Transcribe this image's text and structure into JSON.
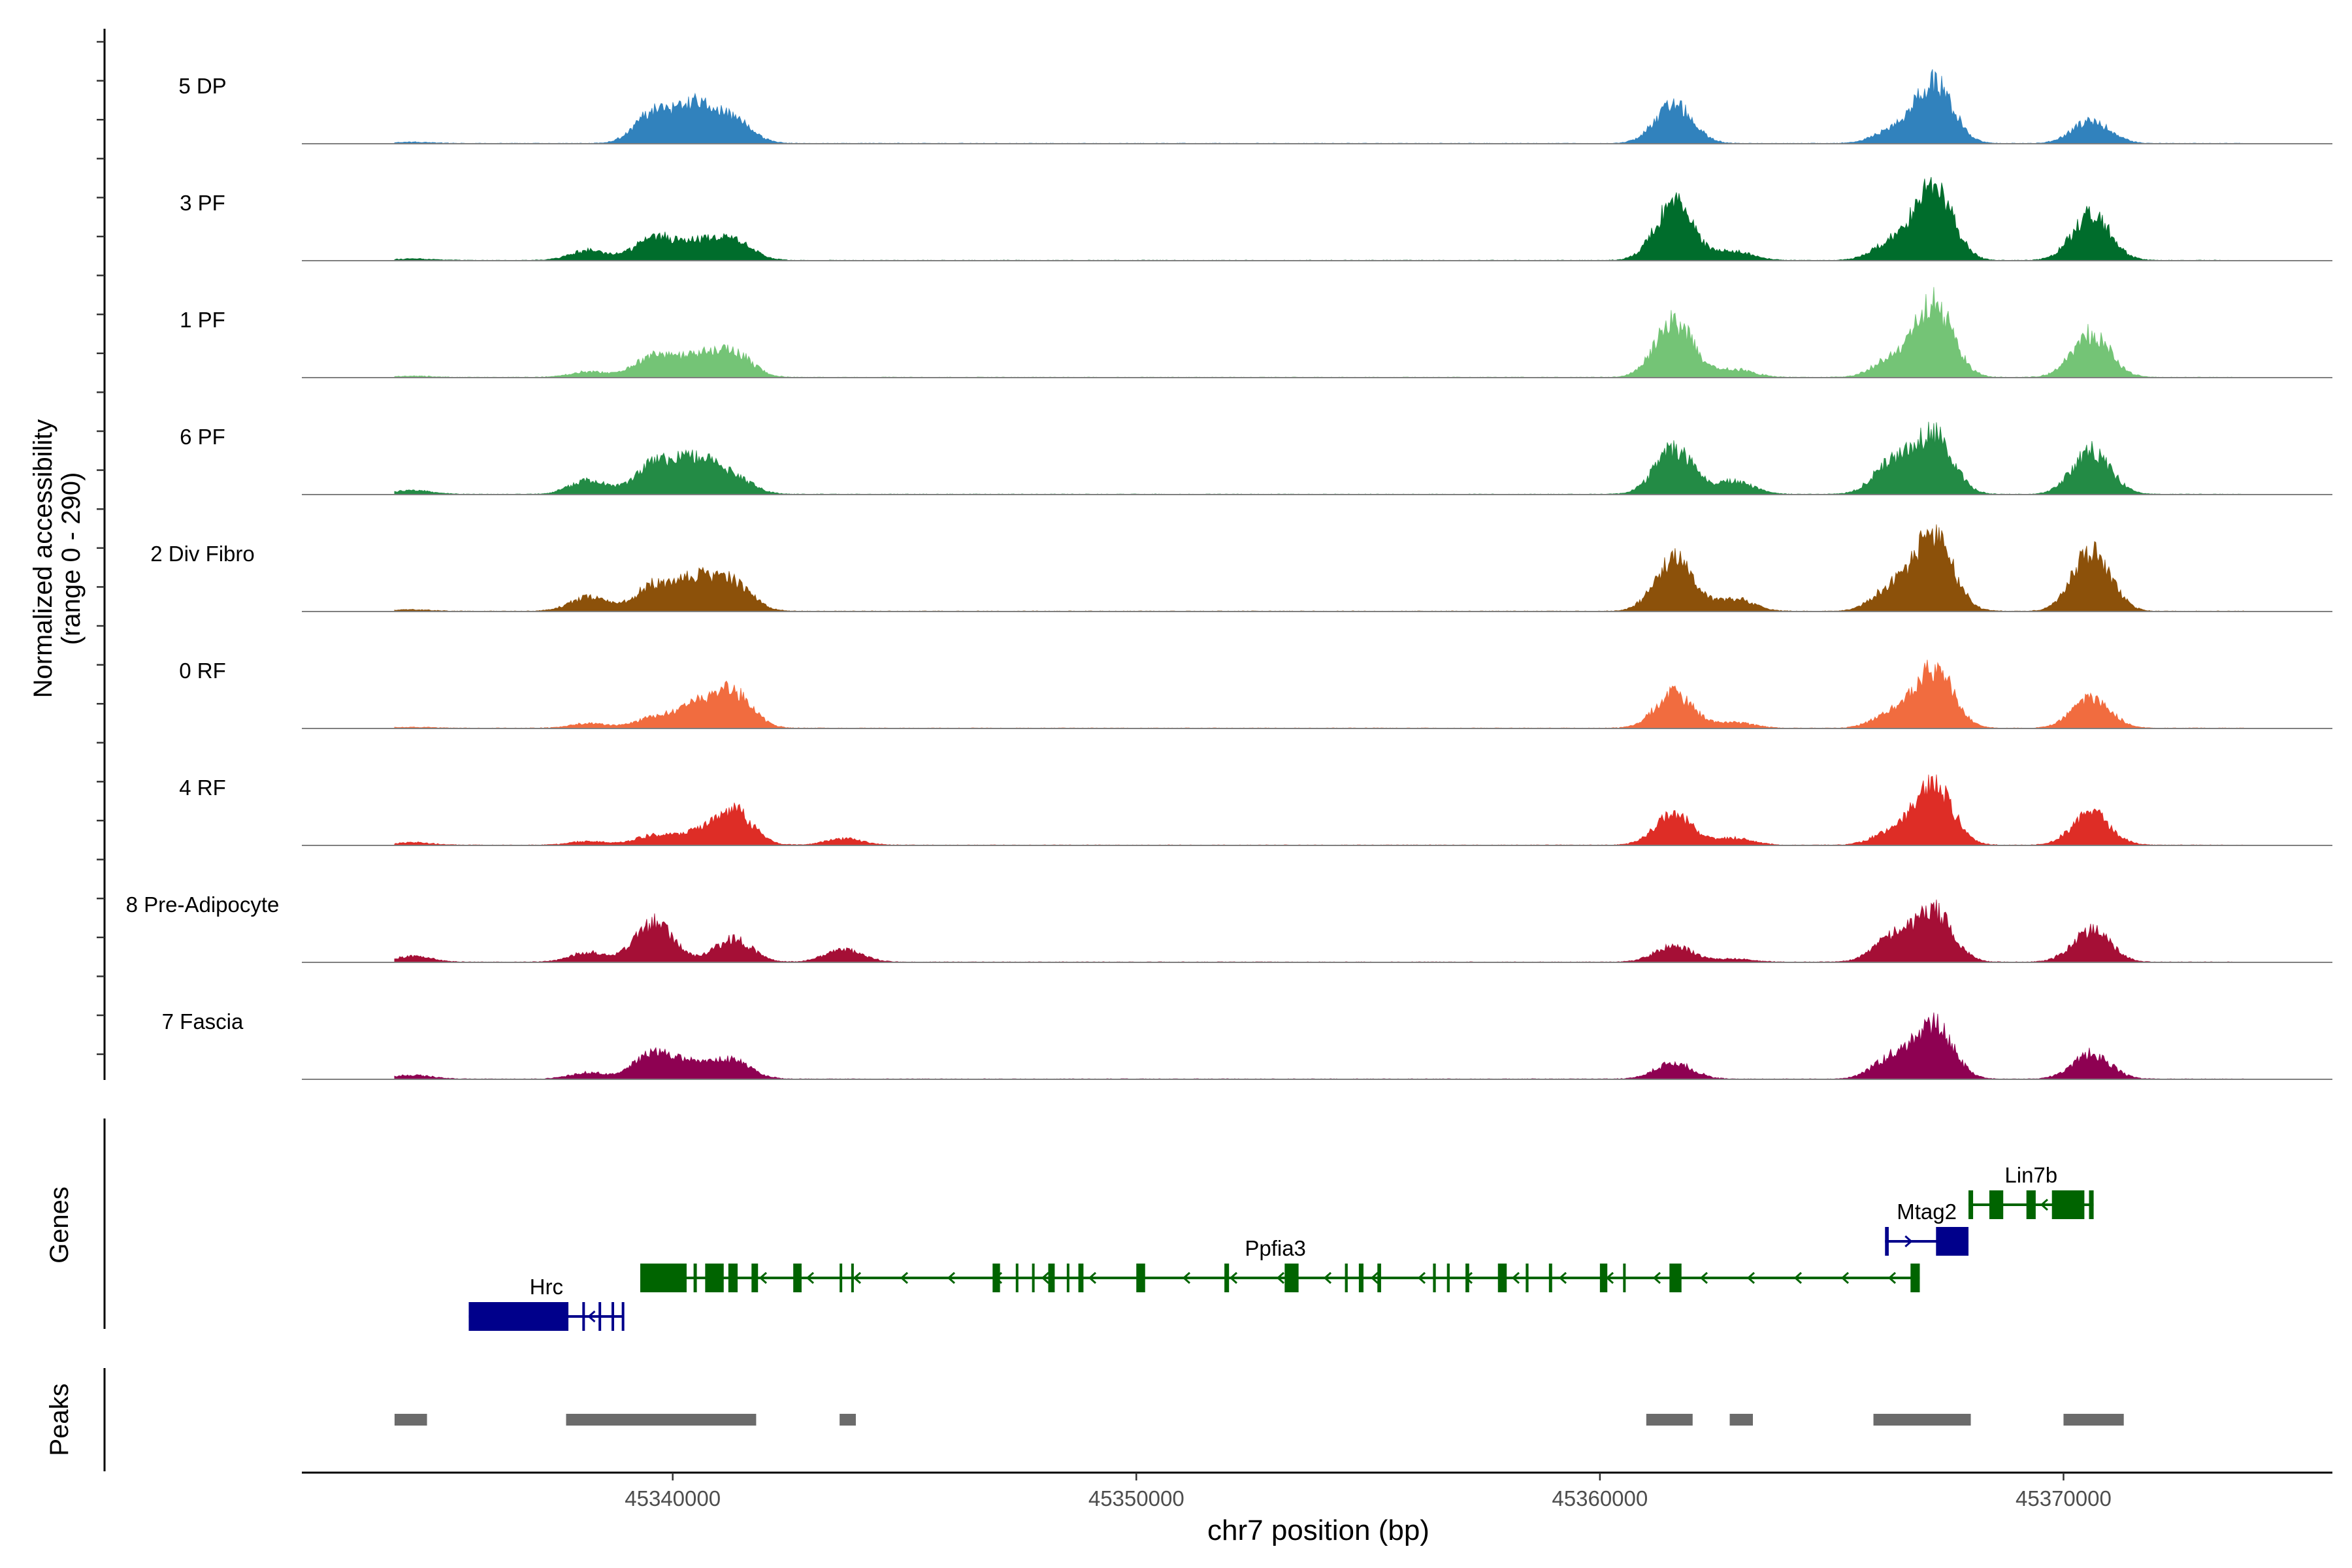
{
  "chart_data": {
    "type": "area",
    "chromosome": "chr7",
    "xlim": [
      45332000,
      45375800
    ],
    "x_ticks": [
      45340000,
      45350000,
      45360000,
      45370000
    ],
    "x_tick_labels": [
      "45340000",
      "45350000",
      "45360000",
      "45370000"
    ],
    "xlabel": "chr7 position (bp)",
    "ylabel_line1": "Normalized accessibility",
    "ylabel_line2": "(range 0 - 290)",
    "y_range": [
      0,
      290
    ],
    "coverage_extent": [
      45334000,
      45373900
    ],
    "peak_centers": [
      45334400,
      45338200,
      45339600,
      45340500,
      45341300,
      45343700,
      45361600,
      45362900,
      45366300,
      45367200,
      45367700,
      45370600
    ],
    "tracks": [
      {
        "name": "5 DP",
        "color": "#3182BD",
        "peaks": [
          4,
          0,
          95,
          118,
          70,
          0,
          120,
          0,
          40,
          190,
          0,
          70
        ]
      },
      {
        "name": "3 PF",
        "color": "#006D2C",
        "peaks": [
          5,
          32,
          72,
          52,
          62,
          0,
          180,
          28,
          55,
          230,
          0,
          145
        ]
      },
      {
        "name": "1 PF",
        "color": "#74C476",
        "peaks": [
          4,
          18,
          68,
          62,
          78,
          0,
          175,
          25,
          55,
          230,
          0,
          140
        ]
      },
      {
        "name": "6 PF",
        "color": "#238B45",
        "peaks": [
          12,
          45,
          95,
          108,
          55,
          0,
          145,
          40,
          95,
          185,
          0,
          140
        ]
      },
      {
        "name": "2 Div Fibro",
        "color": "#8C510A",
        "peaks": [
          5,
          45,
          80,
          100,
          88,
          0,
          165,
          40,
          75,
          240,
          0,
          195
        ]
      },
      {
        "name": "0 RF",
        "color": "#F16C3F",
        "peaks": [
          3,
          15,
          32,
          68,
          112,
          0,
          110,
          18,
          44,
          190,
          0,
          95
        ]
      },
      {
        "name": "4 RF",
        "color": "#DE2D26",
        "peaks": [
          8,
          12,
          30,
          35,
          110,
          20,
          95,
          22,
          40,
          195,
          0,
          100
        ]
      },
      {
        "name": "8 Pre-Adipocyte",
        "color": "#A50F36",
        "peaks": [
          18,
          30,
          125,
          0,
          72,
          38,
          50,
          10,
          75,
          160,
          0,
          100
        ]
      },
      {
        "name": "7 Fascia",
        "color": "#8E0152",
        "peaks": [
          12,
          20,
          85,
          45,
          55,
          0,
          50,
          0,
          65,
          170,
          0,
          80
        ]
      }
    ],
    "genes": [
      {
        "name": "Hrc",
        "strand": "-",
        "color": "#00008B",
        "start": 45335600,
        "end": 45338950,
        "row": 3,
        "exons": [
          [
            45335600,
            45337750
          ],
          [
            45338050,
            45338090
          ],
          [
            45338400,
            45338440
          ],
          [
            45338680,
            45338720
          ],
          [
            45338900,
            45338950
          ]
        ]
      },
      {
        "name": "Ppfia3",
        "strand": "-",
        "color": "#006400",
        "start": 45339300,
        "end": 45366900,
        "row": 2,
        "exons": [
          [
            45339300,
            45340300
          ],
          [
            45340450,
            45340520
          ],
          [
            45340700,
            45341100
          ],
          [
            45341200,
            45341400
          ],
          [
            45341700,
            45341840
          ],
          [
            45342600,
            45342780
          ],
          [
            45343600,
            45343650
          ],
          [
            45343850,
            45343890
          ],
          [
            45346900,
            45347060
          ],
          [
            45347400,
            45347450
          ],
          [
            45347750,
            45347800
          ],
          [
            45348100,
            45348240
          ],
          [
            45348500,
            45348540
          ],
          [
            45348750,
            45348860
          ],
          [
            45350000,
            45350190
          ],
          [
            45351900,
            45352000
          ],
          [
            45353200,
            45353500
          ],
          [
            45354500,
            45354560
          ],
          [
            45354800,
            45354900
          ],
          [
            45355200,
            45355280
          ],
          [
            45356400,
            45356460
          ],
          [
            45356700,
            45356760
          ],
          [
            45357100,
            45357180
          ],
          [
            45357800,
            45357990
          ],
          [
            45358400,
            45358460
          ],
          [
            45358900,
            45358970
          ],
          [
            45360000,
            45360160
          ],
          [
            45360500,
            45360550
          ],
          [
            45361500,
            45361760
          ],
          [
            45366700,
            45366900
          ]
        ]
      },
      {
        "name": "Mtag2",
        "strand": "+",
        "color": "#00008B",
        "start": 45366150,
        "end": 45367950,
        "row": 1,
        "exons": [
          [
            45366150,
            45366230
          ],
          [
            45367250,
            45367950
          ]
        ]
      },
      {
        "name": "Lin7b",
        "strand": "-",
        "color": "#006400",
        "start": 45367950,
        "end": 45370650,
        "row": 0,
        "exons": [
          [
            45367950,
            45368050
          ],
          [
            45368400,
            45368700
          ],
          [
            45369200,
            45369400
          ],
          [
            45369750,
            45370450
          ],
          [
            45370550,
            45370650
          ]
        ]
      }
    ],
    "peak_regions": [
      [
        45334000,
        45334700
      ],
      [
        45337700,
        45341800
      ],
      [
        45343600,
        45343950
      ],
      [
        45361000,
        45362000
      ],
      [
        45362800,
        45363300
      ],
      [
        45365900,
        45368000
      ],
      [
        45370000,
        45371300
      ]
    ],
    "panels": {
      "coverage": "Normalized accessibility",
      "genes": "Genes",
      "peaks": "Peaks"
    }
  }
}
